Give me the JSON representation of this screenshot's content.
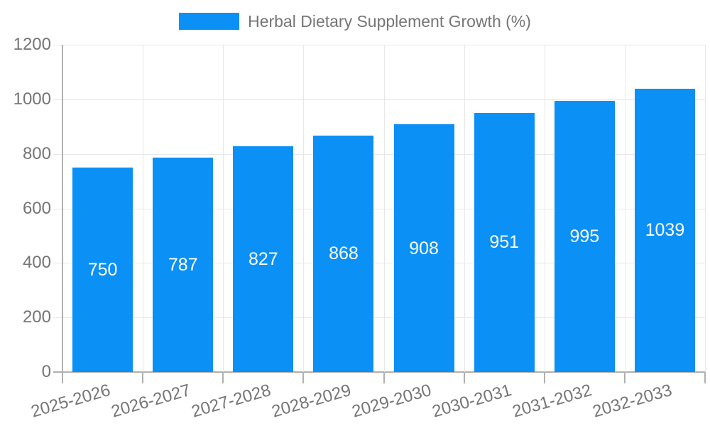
{
  "legend": {
    "position": "top-center",
    "items": [
      {
        "label": "Herbal Dietary Supplement Growth (%)",
        "color": "#0B90F5"
      }
    ]
  },
  "chart_data": {
    "type": "bar",
    "title": "Herbal Dietary Supplement Growth (%)",
    "categories": [
      "2025-2026",
      "2026-2027",
      "2027-2028",
      "2028-2029",
      "2029-2030",
      "2030-2031",
      "2031-2032",
      "2032-2033"
    ],
    "series": [
      {
        "name": "Herbal Dietary Supplement Growth (%)",
        "values": [
          750,
          787,
          827,
          868,
          908,
          951,
          995,
          1039
        ]
      }
    ],
    "value_labels": [
      750,
      787,
      827,
      868,
      908,
      951,
      995,
      1039
    ],
    "xlabel": "",
    "ylabel": "",
    "ylim": [
      0,
      1200
    ],
    "yticks": [
      0,
      200,
      400,
      600,
      800,
      1000,
      1200
    ],
    "grid": true,
    "legend_position": "top",
    "value_label_position": "inside-center",
    "x_tick_label_rotation_deg": 16,
    "colors": {
      "bar": "#0B90F5",
      "value_label": "#FFFFFF",
      "axis_text": "#757575",
      "grid_line": "#E7E7E7",
      "axis_line": "#B0B0B0",
      "background": "#FFFFFF"
    }
  }
}
